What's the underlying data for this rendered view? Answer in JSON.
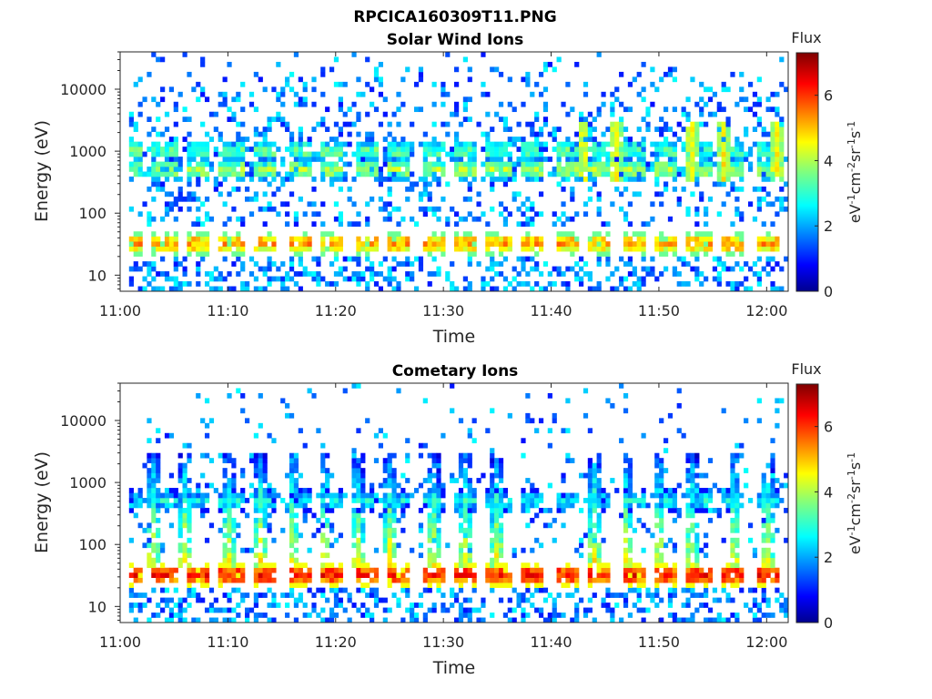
{
  "figure_title": "RPCICA160309T11.PNG",
  "colormap": "jet",
  "chart_data": [
    {
      "type": "heatmap",
      "title": "Solar Wind Ions",
      "xlabel": "Time",
      "ylabel": "Energy (eV)",
      "x_ticks": [
        "11:00",
        "11:10",
        "11:20",
        "11:30",
        "11:40",
        "11:50",
        "12:00"
      ],
      "xlim": [
        "11:00",
        "12:02"
      ],
      "y_scale": "log",
      "ylim": [
        5.5,
        40000
      ],
      "y_ticks": [
        {
          "value": 10,
          "label": "10"
        },
        {
          "value": 100,
          "label": "100"
        },
        {
          "value": 1000,
          "label": "1000"
        },
        {
          "value": 10000,
          "label": "10000"
        }
      ],
      "colorbar": {
        "title": "Flux",
        "label": "eV-1cm-2sr-1s-1",
        "range": [
          0,
          7.3
        ],
        "ticks": [
          0,
          2,
          4,
          6
        ]
      },
      "bands": [
        {
          "energy": 33,
          "flux": 5.3,
          "note": "pulsed low-energy band"
        },
        {
          "energy": 500,
          "flux": 4.0,
          "note": "solar wind proton band"
        },
        {
          "energy": 1000,
          "flux": 3.5
        }
      ],
      "strong_bursts_time": [
        "11:43",
        "11:46",
        "11:53",
        "11:56",
        "12:01"
      ]
    },
    {
      "type": "heatmap",
      "title": "Cometary Ions",
      "xlabel": "Time",
      "ylabel": "Energy (eV)",
      "x_ticks": [
        "11:00",
        "11:10",
        "11:20",
        "11:30",
        "11:40",
        "11:50",
        "12:00"
      ],
      "xlim": [
        "11:00",
        "12:02"
      ],
      "y_scale": "log",
      "ylim": [
        5.5,
        40000
      ],
      "y_ticks": [
        {
          "value": 10,
          "label": "10"
        },
        {
          "value": 100,
          "label": "100"
        },
        {
          "value": 1000,
          "label": "1000"
        },
        {
          "value": 10000,
          "label": "10000"
        }
      ],
      "colorbar": {
        "title": "Flux",
        "label": "eV-1cm-2sr-1s-1",
        "range": [
          0,
          7.3
        ],
        "ticks": [
          0,
          2,
          4,
          6
        ]
      },
      "bands": [
        {
          "energy": 33,
          "flux": 6.3,
          "note": "dense cometary ion band"
        },
        {
          "energy": 500,
          "flux": 2.8
        }
      ],
      "spike_times": [
        "11:03",
        "11:06",
        "11:10",
        "11:13",
        "11:16",
        "11:19",
        "11:22",
        "11:25",
        "11:29",
        "11:32",
        "11:35",
        "11:44",
        "11:47",
        "11:50",
        "11:53",
        "11:57",
        "12:00"
      ]
    }
  ]
}
